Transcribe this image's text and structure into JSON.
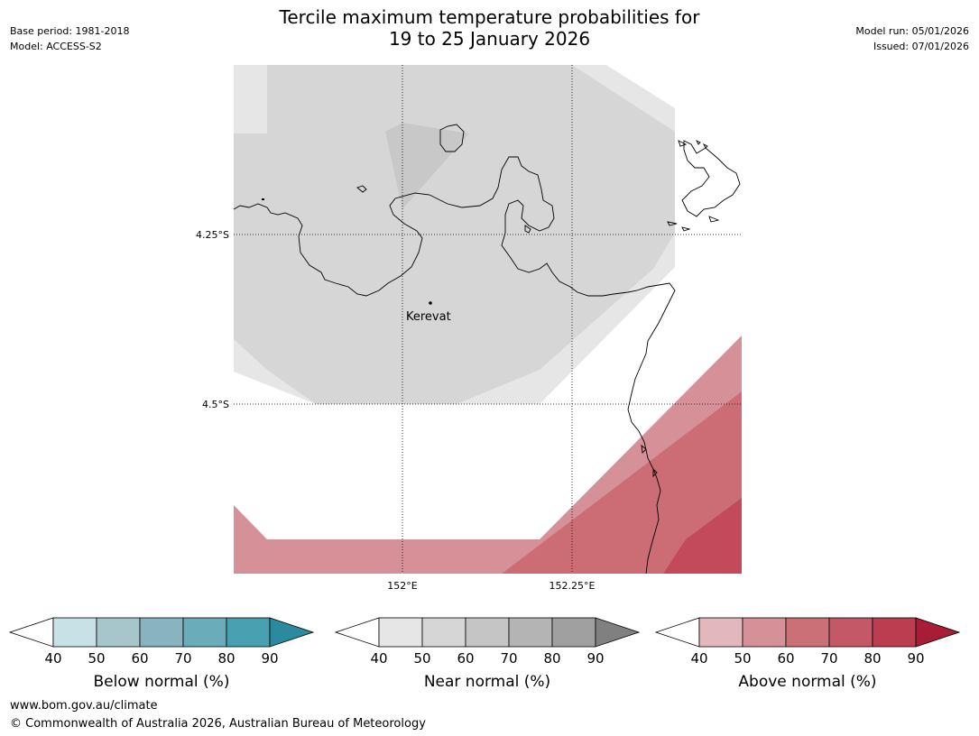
{
  "title": {
    "line1": "Tercile maximum temperature probabilities for",
    "line2": "19 to 25 January 2026"
  },
  "meta_left": {
    "base_period": "Base period: 1981-2018",
    "model": "Model: ACCESS-S2"
  },
  "meta_right": {
    "model_run": "Model run: 05/01/2026",
    "issued": "Issued: 07/01/2026"
  },
  "map": {
    "lat_labels": [
      "4.25°S",
      "4.5°S"
    ],
    "lon_labels": [
      "152°E",
      "152.25°E"
    ],
    "place": "Kerevat"
  },
  "colorbars": [
    {
      "label": "Below normal (%)",
      "ticks": [
        "40",
        "50",
        "60",
        "70",
        "80",
        "90"
      ],
      "colors": [
        "#ffffff",
        "#c8e1e6",
        "#a6c6cb",
        "#88b4c0",
        "#6aacba",
        "#48a0b0",
        "#2b8a9d"
      ]
    },
    {
      "label": "Near normal (%)",
      "ticks": [
        "40",
        "50",
        "60",
        "70",
        "80",
        "90"
      ],
      "colors": [
        "#ffffff",
        "#e6e6e6",
        "#d6d6d6",
        "#c5c5c5",
        "#b4b4b4",
        "#a0a0a0",
        "#808080"
      ]
    },
    {
      "label": "Above normal (%)",
      "ticks": [
        "40",
        "50",
        "60",
        "70",
        "80",
        "90"
      ],
      "colors": [
        "#ffffff",
        "#e3b8bd",
        "#d69097",
        "#cc7078",
        "#c45866",
        "#bc3d50",
        "#a81c38"
      ]
    }
  ],
  "footer": {
    "url": "www.bom.gov.au/climate",
    "copyright": "© Commonwealth of Australia 2026, Australian Bureau of Meteorology"
  }
}
